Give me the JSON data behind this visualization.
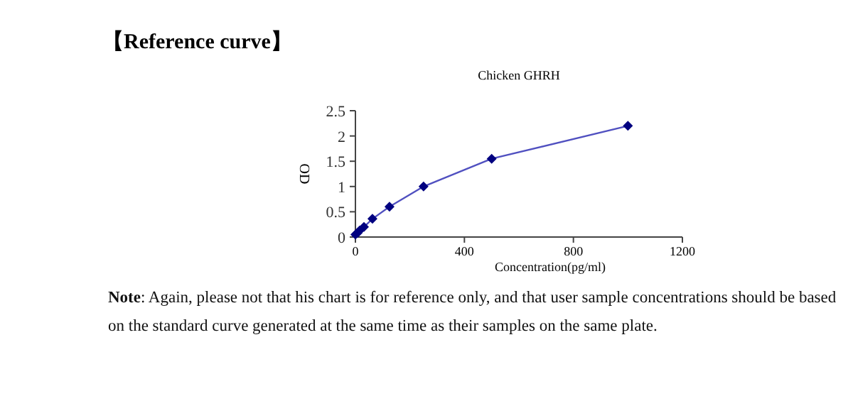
{
  "chart_data": {
    "type": "line",
    "title": "Chicken GHRH",
    "xlabel": "Concentration(pg/ml)",
    "ylabel": "OD",
    "annotations": [
      "【Reference curve】",
      "Note: Again, please not that his chart is for reference only, and that user sample concentrations should be based on the standard curve generated at the same time as their samples on the same plate."
    ],
    "x": [
      0,
      7.8,
      15.6,
      31.25,
      62.5,
      125,
      250,
      500,
      1000
    ],
    "series": [
      {
        "color": "#000080",
        "values": [
          0.05,
          0.08,
          0.13,
          0.2,
          0.36,
          0.6,
          1.0,
          1.55,
          2.2
        ]
      }
    ],
    "xlim": [
      0,
      1200
    ],
    "xticks": [
      0,
      400,
      800,
      1200
    ],
    "ylim": [
      0,
      2.5
    ],
    "yticks": [
      0,
      0.5,
      1,
      1.5,
      2,
      2.5
    ],
    "marker": "diamond",
    "line_style": "solid",
    "grid": false
  }
}
